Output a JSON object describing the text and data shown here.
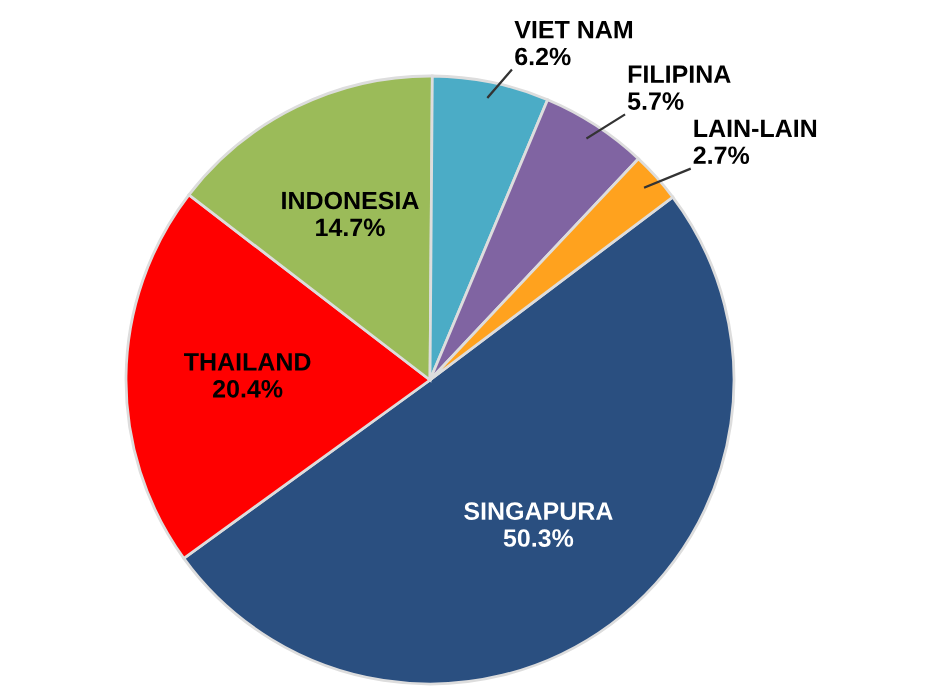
{
  "chart_data": {
    "type": "pie",
    "categories": [
      "SINGAPURA",
      "THAILAND",
      "INDONESIA",
      "VIET NAM",
      "FILIPINA",
      "LAIN-LAIN"
    ],
    "values": [
      50.3,
      20.4,
      14.7,
      6.2,
      5.7,
      2.7
    ],
    "value_labels": [
      "50.3%",
      "20.4%",
      "14.7%",
      "6.2%",
      "5.7%",
      "2.7%"
    ],
    "colors": [
      "#2a4f80",
      "#ff0000",
      "#9bbb59",
      "#4bacc6",
      "#8064a2",
      "#ffa21e"
    ],
    "legend": false
  }
}
